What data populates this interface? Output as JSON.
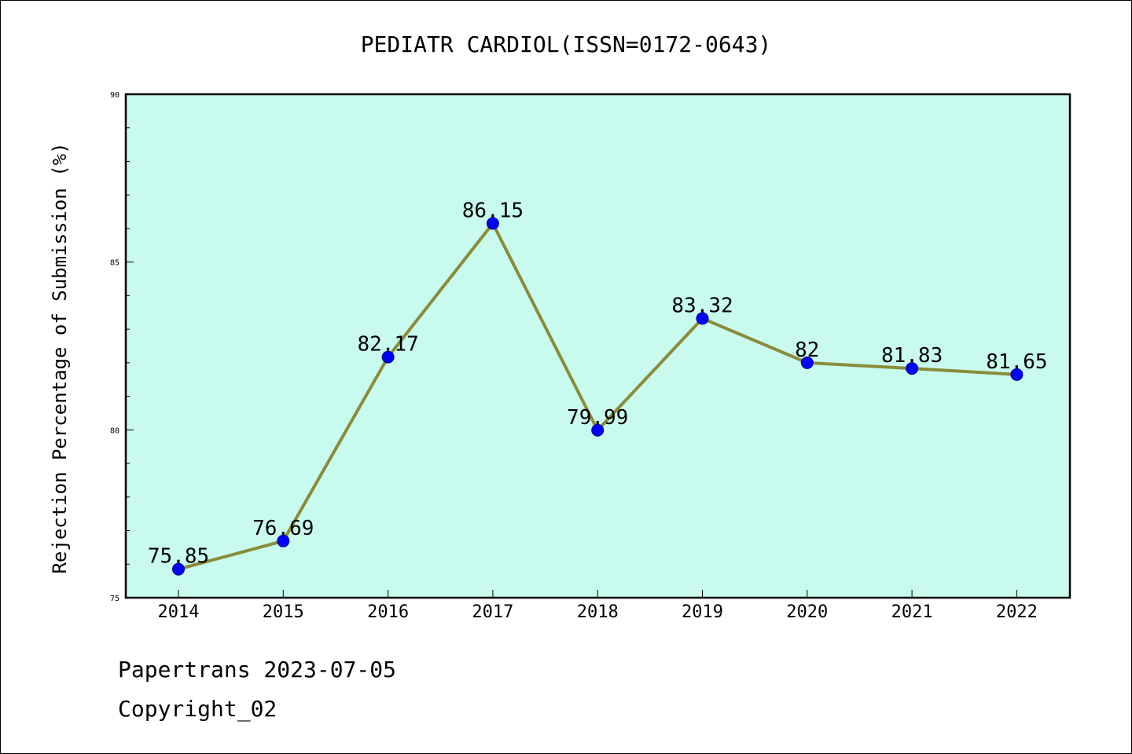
{
  "chart_data": {
    "type": "line",
    "title": "PEDIATR CARDIOL(ISSN=0172-0643)",
    "xlabel": "",
    "ylabel": "Rejection Percentage of Submission (%)",
    "categories": [
      "2014",
      "2015",
      "2016",
      "2017",
      "2018",
      "2019",
      "2020",
      "2021",
      "2022"
    ],
    "values": [
      75.85,
      76.69,
      82.17,
      86.15,
      79.99,
      83.32,
      82,
      81.83,
      81.65
    ],
    "data_labels": [
      "75.85",
      "76.69",
      "82.17",
      "86.15",
      "79.99",
      "83.32",
      "82",
      "81.83",
      "81.65"
    ],
    "ylim": [
      75,
      90
    ],
    "yticks": [
      75,
      80,
      85,
      90
    ],
    "grid": false,
    "colors": {
      "plot_background": "#c8fbed",
      "line": "#8b8b3a",
      "marker": "#0000ff"
    }
  },
  "footer": {
    "line1": "Papertrans 2023-07-05",
    "line2": "Copyright_02"
  }
}
